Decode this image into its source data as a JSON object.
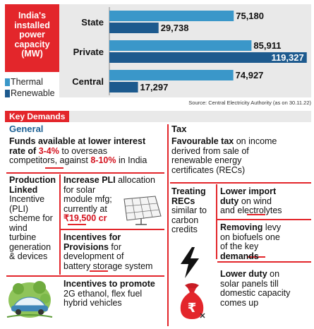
{
  "chart_data": {
    "type": "bar",
    "title": "India's installed power capacity (MW)",
    "categories": [
      "State",
      "Private",
      "Central"
    ],
    "series": [
      {
        "name": "Thermal",
        "values": [
          75180,
          85911,
          74927
        ],
        "labels": [
          "75,180",
          "85,911",
          "74,927"
        ],
        "color": "#3a97c9"
      },
      {
        "name": "Renewable",
        "values": [
          29738,
          119327,
          17297
        ],
        "labels": [
          "29,738",
          "119,327",
          "17,297"
        ],
        "color": "#1d5a8e"
      }
    ],
    "xlim": [
      0,
      122000
    ],
    "legend": "bottom-left",
    "grid": false,
    "source": "Source: Central Electricity Authority (as on 30.11.22)"
  },
  "title_lines": [
    "India's",
    "installed",
    "power",
    "capacity",
    "(MW)"
  ],
  "key_demands": {
    "label": "Key Demands",
    "general": {
      "title": "General",
      "funds": {
        "line1": "Funds available at lower interest",
        "line2a": "rate of ",
        "rate_low": "3-4%",
        "line2b": " to overseas",
        "line3a": "competitors, against ",
        "rate_high": "8-10%",
        "line3b": " in India"
      },
      "production": {
        "bold1": "Production",
        "bold2": "Linked",
        "rest": [
          "Incentive",
          "(PLI)",
          "scheme for",
          "wind",
          "turbine",
          "generation",
          "& devices"
        ]
      },
      "increase_pli": {
        "bold": "Increase PLI",
        "rest1": " allocation",
        "lines": [
          "for solar",
          "module mfg;",
          "currently at"
        ],
        "amount": "₹19,500 cr"
      },
      "incentives_provisions": {
        "bold1": "Incentives for",
        "bold2": "Provisions",
        "rest1": " for",
        "lines": [
          "development of",
          "battery storage system"
        ]
      },
      "incentives_promote": {
        "bold": "Incentives to promote",
        "lines": [
          "2G ethanol, flex fuel",
          "hybrid vehicles"
        ]
      }
    },
    "tax": {
      "title": "Tax",
      "favourable": {
        "bold": "Favourable tax",
        "rest1": " on income",
        "lines": [
          "derived from sale of",
          "renewable energy",
          "certificates (RECs)"
        ]
      },
      "treating": {
        "bold1": "Treating",
        "bold2": "RECs",
        "lines": [
          "similar to",
          "carbon",
          "credits"
        ]
      },
      "lower_import": {
        "bold1": "Lower import",
        "bold2": "duty",
        "rest2": " on wind",
        "line3": "and electrolytes"
      },
      "removing": {
        "bold": "Removing",
        "rest1": " levy",
        "line2": "on biofuels one",
        "line3": "of the key",
        "bold4": "demands"
      },
      "lower_duty": {
        "bold1": "Lower duty",
        "rest1": " on",
        "lines": [
          "solar panels till",
          "domestic capacity",
          "comes up"
        ]
      }
    }
  }
}
